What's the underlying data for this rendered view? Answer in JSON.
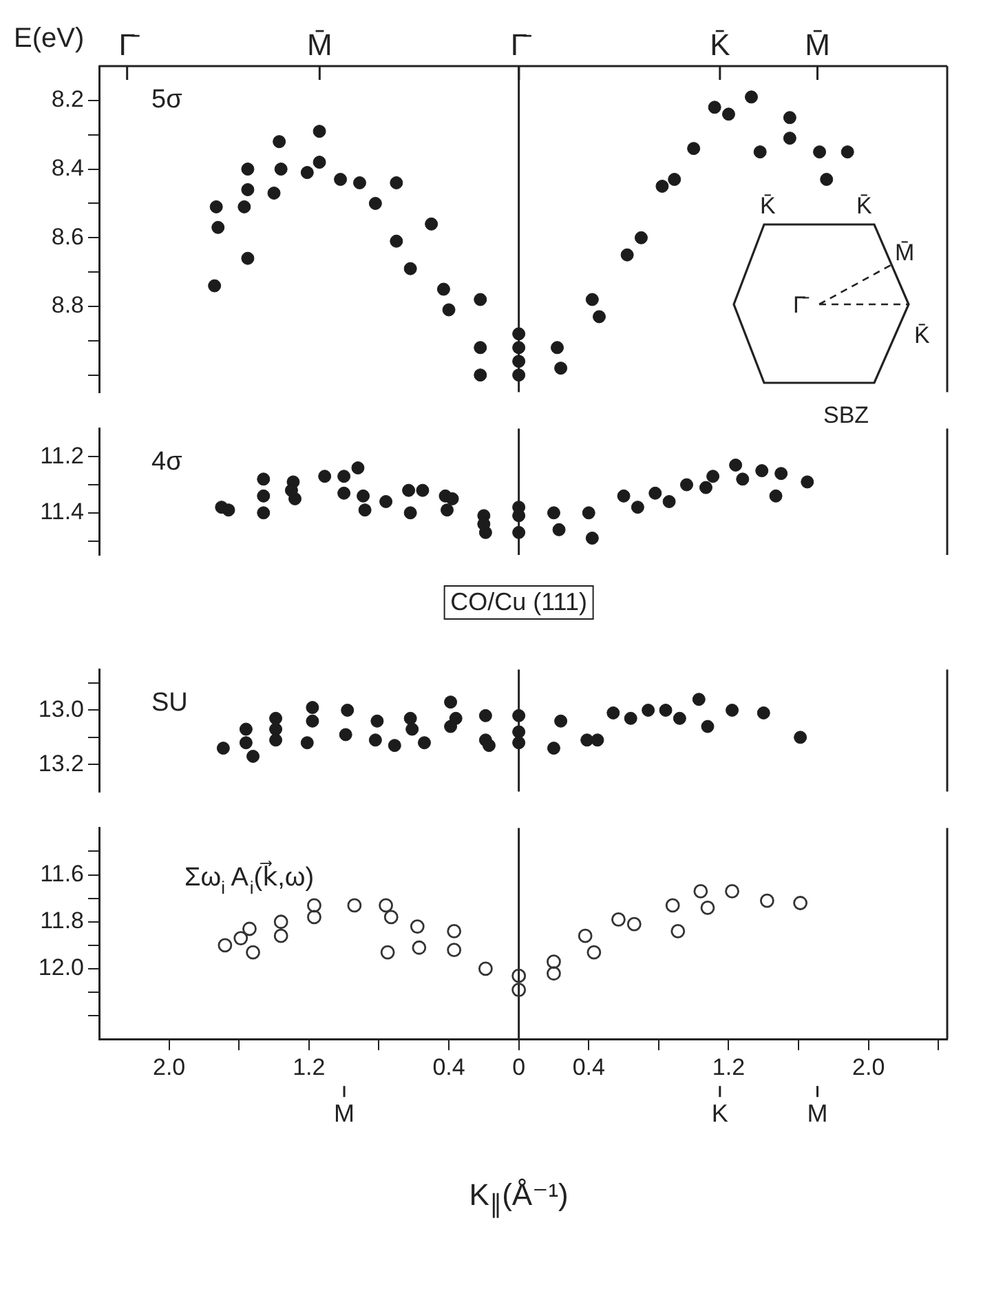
{
  "chart_data": [
    {
      "type": "scatter",
      "ylabel": "E(eV)",
      "marker": "circle",
      "tick_labels": "y",
      "xlim": [
        -2.4,
        2.45
      ],
      "ylim": [
        9.05,
        8.1
      ],
      "yticks": [
        8.2,
        {
          "value": 8.3,
          "label": null
        },
        8.4,
        {
          "value": 8.5,
          "label": null
        },
        8.6,
        {
          "value": 8.7,
          "label": null
        },
        8.8,
        {
          "value": 8.9,
          "label": null
        },
        {
          "value": 9.0,
          "label": null
        }
      ],
      "ref_lines": [
        {
          "axis": "x",
          "value": 0
        }
      ],
      "annotations": [
        "5σ",
        "Γ̄",
        "M̄",
        "Γ̄",
        "K̄",
        "M̄",
        "Γ̄",
        "K̄",
        "K̄",
        "M̄",
        "K̄",
        "SBZ"
      ],
      "series": [
        {
          "color": "#1c1c1c",
          "x": [
            -1.74,
            -1.73,
            -1.72,
            -1.55,
            -1.55,
            -1.55,
            -1.57,
            -1.4,
            -1.37,
            -1.36,
            -1.21,
            -1.14,
            -1.14,
            -1.02,
            -0.91,
            -0.82,
            -0.7,
            -0.7,
            -0.62,
            -0.5,
            -0.43,
            -0.4,
            -0.22,
            -0.22,
            -0.22,
            0,
            0,
            0,
            0,
            0.22,
            0.24,
            0.42,
            0.46,
            0.62,
            0.7,
            0.82,
            0.89,
            1.0,
            1.12,
            1.2,
            1.33,
            1.38,
            1.55,
            1.55,
            1.72,
            1.76,
            1.88
          ],
          "values": [
            8.74,
            8.51,
            8.57,
            8.46,
            8.4,
            8.66,
            8.51,
            8.47,
            8.32,
            8.4,
            8.41,
            8.38,
            8.29,
            8.43,
            8.44,
            8.5,
            8.44,
            8.61,
            8.69,
            8.56,
            8.75,
            8.81,
            8.78,
            8.92,
            9.0,
            8.88,
            8.92,
            8.96,
            9.0,
            8.92,
            8.98,
            8.78,
            8.83,
            8.65,
            8.6,
            8.45,
            8.43,
            8.34,
            8.22,
            8.24,
            8.19,
            8.35,
            8.25,
            8.31,
            8.35,
            8.43,
            8.35
          ]
        }
      ]
    },
    {
      "type": "scatter",
      "marker": "circle",
      "tick_labels": "y",
      "xlim": [
        -2.4,
        2.45
      ],
      "ylim": [
        11.55,
        11.1
      ],
      "yticks": [
        11.2,
        {
          "value": 11.3,
          "label": null
        },
        11.4,
        {
          "value": 11.5,
          "label": null
        }
      ],
      "ref_lines": [
        {
          "axis": "x",
          "value": 0
        }
      ],
      "annotations": [
        "4σ",
        "CO/Cu (111)"
      ],
      "series": [
        {
          "color": "#1c1c1c",
          "x": [
            -1.7,
            -1.66,
            -1.46,
            -1.46,
            -1.46,
            -1.29,
            -1.3,
            -1.28,
            -1.11,
            -1.0,
            -0.92,
            -1.0,
            -0.89,
            -0.88,
            -0.76,
            -0.63,
            -0.55,
            -0.62,
            -0.42,
            -0.38,
            -0.41,
            -0.2,
            -0.2,
            -0.19,
            0,
            0,
            0,
            0.2,
            0.23,
            0.4,
            0.42,
            0.6,
            0.68,
            0.78,
            0.86,
            0.96,
            1.07,
            1.11,
            1.24,
            1.28,
            1.39,
            1.5,
            1.47,
            1.65
          ],
          "values": [
            11.38,
            11.39,
            11.28,
            11.34,
            11.4,
            11.29,
            11.32,
            11.35,
            11.27,
            11.27,
            11.24,
            11.33,
            11.34,
            11.39,
            11.36,
            11.32,
            11.32,
            11.4,
            11.34,
            11.35,
            11.39,
            11.41,
            11.44,
            11.47,
            11.38,
            11.41,
            11.47,
            11.4,
            11.46,
            11.4,
            11.49,
            11.34,
            11.38,
            11.33,
            11.36,
            11.3,
            11.31,
            11.27,
            11.23,
            11.28,
            11.25,
            11.26,
            11.34,
            11.29
          ]
        }
      ]
    },
    {
      "type": "scatter",
      "marker": "circle",
      "tick_labels": "y",
      "xlim": [
        -2.4,
        2.45
      ],
      "ylim": [
        13.3,
        12.85
      ],
      "yticks": [
        {
          "value": 12.9,
          "label": null
        },
        {
          "value": 13,
          "label": "13.0"
        },
        {
          "value": 13.1,
          "label": null
        },
        13.2
      ],
      "ref_lines": [
        {
          "axis": "x",
          "value": 0
        }
      ],
      "annotations": [
        "SU"
      ],
      "series": [
        {
          "color": "#1c1c1c",
          "x": [
            -1.69,
            -1.56,
            -1.56,
            -1.52,
            -1.39,
            -1.39,
            -1.39,
            -1.18,
            -1.18,
            -1.21,
            -0.98,
            -0.99,
            -0.81,
            -0.82,
            -0.71,
            -0.62,
            -0.61,
            -0.54,
            -0.39,
            -0.36,
            -0.39,
            -0.19,
            -0.19,
            -0.17,
            0,
            0,
            0,
            0.24,
            0.2,
            0.39,
            0.45,
            0.54,
            0.64,
            0.74,
            0.84,
            0.92,
            1.03,
            1.08,
            1.22,
            1.4,
            1.61
          ],
          "values": [
            13.14,
            13.07,
            13.12,
            13.17,
            13.03,
            13.07,
            13.11,
            12.99,
            13.04,
            13.12,
            13.0,
            13.09,
            13.04,
            13.11,
            13.13,
            13.03,
            13.07,
            13.12,
            12.97,
            13.03,
            13.06,
            13.02,
            13.11,
            13.13,
            13.02,
            13.08,
            13.12,
            13.04,
            13.14,
            13.11,
            13.11,
            13.01,
            13.03,
            13.0,
            13.0,
            13.03,
            12.96,
            13.06,
            13.0,
            13.01,
            13.1
          ]
        }
      ]
    },
    {
      "type": "scatter",
      "marker": "circle-open",
      "xlabel": "K$_{∥}$(Å⁻¹)",
      "xlim": [
        -2.4,
        2.45
      ],
      "ylim": [
        12.3,
        11.4
      ],
      "yticks": [
        {
          "value": 11.5,
          "label": null
        },
        11.6,
        {
          "value": 11.7,
          "label": null
        },
        11.8,
        {
          "value": 11.9,
          "label": null
        },
        {
          "value": 12,
          "label": "12.0"
        },
        {
          "value": 12.1,
          "label": null
        },
        {
          "value": 12.2,
          "label": null
        }
      ],
      "xticks": [
        {
          "value": -2,
          "label": "2.0"
        },
        {
          "value": -1.6,
          "label": null
        },
        {
          "value": -1.2,
          "label": "1.2"
        },
        {
          "value": -0.8,
          "label": null
        },
        {
          "value": -0.4,
          "label": "0.4"
        },
        0,
        0.4,
        {
          "value": 0.8,
          "label": null
        },
        1.2,
        {
          "value": 1.6,
          "label": null
        },
        {
          "value": 2,
          "label": "2.0"
        },
        {
          "value": 2.4,
          "label": null
        }
      ],
      "ref_lines": [
        {
          "axis": "x",
          "value": 0
        }
      ],
      "annotations": [
        "Σω$_{i}$ A$_{i}$(k⃗,ω)",
        "M",
        "K",
        "M"
      ],
      "series": [
        {
          "color": "#333333",
          "x": [
            -1.68,
            -1.59,
            -1.54,
            -1.52,
            -1.36,
            -1.36,
            -1.17,
            -1.17,
            -0.94,
            -0.76,
            -0.73,
            -0.75,
            -0.58,
            -0.57,
            -0.37,
            -0.37,
            -0.19,
            0,
            0,
            0.2,
            0.2,
            0.38,
            0.43,
            0.57,
            0.66,
            0.88,
            0.91,
            1.04,
            1.08,
            1.22,
            1.42,
            1.61
          ],
          "values": [
            11.9,
            11.87,
            11.83,
            11.93,
            11.8,
            11.86,
            11.73,
            11.78,
            11.73,
            11.73,
            11.78,
            11.93,
            11.82,
            11.91,
            11.84,
            11.92,
            12.0,
            12.03,
            12.09,
            11.97,
            12.02,
            11.86,
            11.93,
            11.79,
            11.81,
            11.73,
            11.84,
            11.67,
            11.74,
            11.67,
            11.71,
            11.72
          ]
        }
      ]
    }
  ]
}
